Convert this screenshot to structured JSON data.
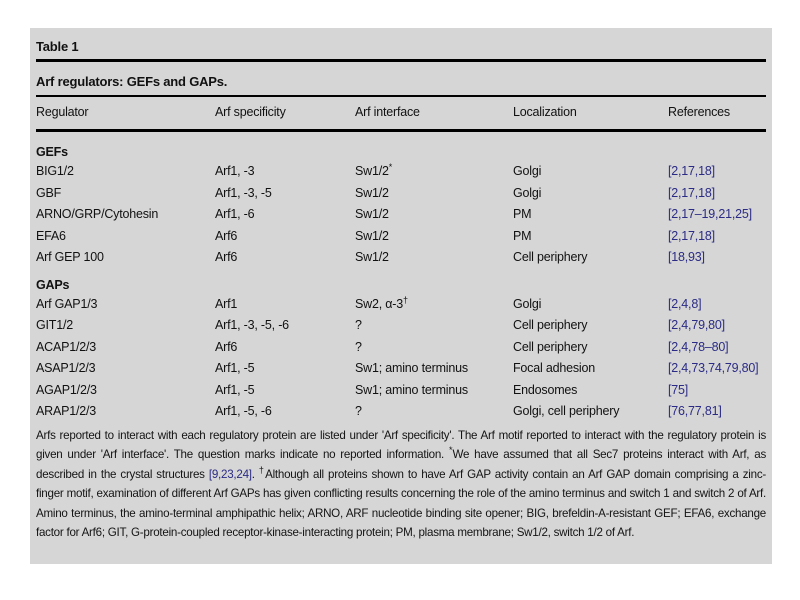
{
  "colors": {
    "panel_bg": "#d6d6d6",
    "reference_blue": "#2b2b85",
    "text_color": "#111111"
  },
  "table": {
    "label": "Table 1",
    "caption": "Arf regulators: GEFs and GAPs.",
    "columns": [
      "Regulator",
      "Arf specificity",
      "Arf interface",
      "Localization",
      "References"
    ],
    "sections": [
      {
        "name": "GEFs",
        "rows": [
          {
            "regulator": "BIG1/2",
            "specificity": "Arf1, -3",
            "interface": "Sw1/2",
            "interface_sup": "*",
            "localization": "Golgi",
            "references": "[2,17,18]"
          },
          {
            "regulator": "GBF",
            "specificity": "Arf1, -3, -5",
            "interface": "Sw1/2",
            "interface_sup": "",
            "localization": "Golgi",
            "references": "[2,17,18]"
          },
          {
            "regulator": "ARNO/GRP/Cytohesin",
            "specificity": "Arf1, -6",
            "interface": "Sw1/2",
            "interface_sup": "",
            "localization": "PM",
            "references": "[2,17–19,21,25]"
          },
          {
            "regulator": "EFA6",
            "specificity": "Arf6",
            "interface": "Sw1/2",
            "interface_sup": "",
            "localization": "PM",
            "references": "[2,17,18]"
          },
          {
            "regulator": "Arf GEP 100",
            "specificity": "Arf6",
            "interface": "Sw1/2",
            "interface_sup": "",
            "localization": "Cell periphery",
            "references": "[18,93]"
          }
        ]
      },
      {
        "name": "GAPs",
        "rows": [
          {
            "regulator": "Arf GAP1/3",
            "specificity": "Arf1",
            "interface": "Sw2, α-3",
            "interface_sup": "†",
            "localization": "Golgi",
            "references": "[2,4,8]"
          },
          {
            "regulator": "GIT1/2",
            "specificity": "Arf1, -3, -5, -6",
            "interface": "?",
            "interface_sup": "",
            "localization": "Cell periphery",
            "references": "[2,4,79,80]"
          },
          {
            "regulator": "ACAP1/2/3",
            "specificity": "Arf6",
            "interface": "?",
            "interface_sup": "",
            "localization": "Cell periphery",
            "references": "[2,4,78–80]"
          },
          {
            "regulator": "ASAP1/2/3",
            "specificity": "Arf1, -5",
            "interface": "Sw1; amino terminus",
            "interface_sup": "",
            "localization": "Focal adhesion",
            "references": "[2,4,73,74,79,80]"
          },
          {
            "regulator": "AGAP1/2/3",
            "specificity": "Arf1, -5",
            "interface": "Sw1; amino terminus",
            "interface_sup": "",
            "localization": "Endosomes",
            "references": "[75]"
          },
          {
            "regulator": "ARAP1/2/3",
            "specificity": "Arf1, -5, -6",
            "interface": "?",
            "interface_sup": "",
            "localization": "Golgi, cell periphery",
            "references": "[76,77,81]"
          }
        ]
      }
    ],
    "footnote": {
      "seg1": "Arfs reported to interact with each regulatory protein are listed under 'Arf specificity'. The Arf motif reported to interact with the regulatory protein is given under 'Arf interface'. The question marks indicate no reported information. ",
      "sup1": "*",
      "seg2": "We have assumed that all Sec7 proteins interact with Arf, as described in the crystal structures ",
      "cite": "[9,23,24]",
      "seg3": ". ",
      "sup2": "†",
      "seg4": "Although all proteins shown to have Arf GAP activity contain an Arf GAP domain comprising a zinc-finger motif, examination of different Arf GAPs has given conflicting results concerning the role of the amino terminus and switch 1 and switch 2 of Arf. Amino terminus, the amino-terminal amphipathic helix; ARNO, ARF nucleotide binding site opener; BIG, brefeldin-A-resistant GEF; EFA6, exchange factor for Arf6; GIT, G-protein-coupled receptor-kinase-interacting protein; PM, plasma membrane; Sw1/2, switch 1/2 of Arf."
    }
  }
}
